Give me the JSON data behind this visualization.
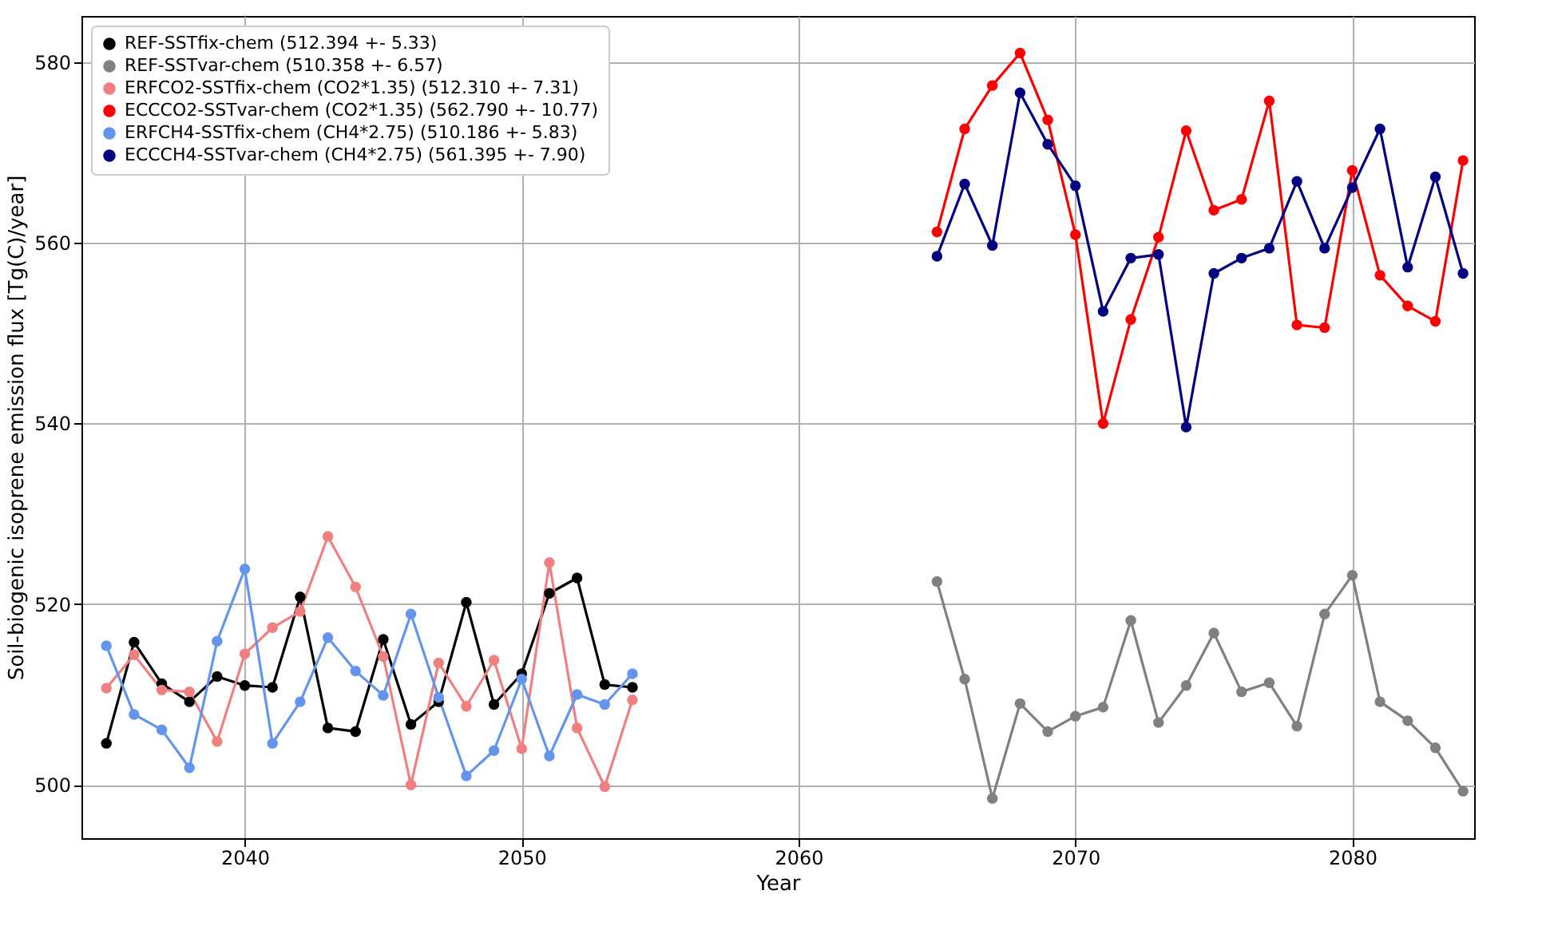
{
  "chart_data": {
    "type": "line",
    "xlabel": "Year",
    "ylabel": "Soil-biogenic isoprene emission flux [Tg(C)/year]",
    "xlim": [
      2034.1,
      2084.4
    ],
    "xticks": [
      2040,
      2050,
      2060,
      2070,
      2080
    ],
    "ylim": [
      494.1,
      585.1
    ],
    "yticks": [
      500,
      520,
      540,
      560,
      580
    ],
    "grid": true,
    "legend": "top left",
    "marker": "circle",
    "line_style": "solid",
    "series": [
      {
        "name": "REF-SSTfix-chem (512.394 +- 5.33)",
        "color": "#000000",
        "x": [
          2035,
          2036,
          2037,
          2038,
          2039,
          2040,
          2041,
          2042,
          2043,
          2044,
          2045,
          2046,
          2047,
          2048,
          2049,
          2050,
          2051,
          2052,
          2053,
          2054
        ],
        "values": [
          504.6,
          515.8,
          511.2,
          509.2,
          512.0,
          511.0,
          510.8,
          520.8,
          506.3,
          505.9,
          516.1,
          506.7,
          509.2,
          520.2,
          508.9,
          512.3,
          521.2,
          522.9,
          511.1,
          510.8
        ]
      },
      {
        "name": "REF-SSTvar-chem (510.358 +- 6.57)",
        "color": "#808080",
        "x": [
          2065,
          2066,
          2067,
          2068,
          2069,
          2070,
          2071,
          2072,
          2073,
          2074,
          2075,
          2076,
          2077,
          2078,
          2079,
          2080,
          2081,
          2082,
          2083,
          2084
        ],
        "values": [
          522.5,
          511.7,
          498.5,
          509.0,
          505.9,
          507.6,
          508.6,
          518.2,
          506.9,
          511.0,
          516.8,
          510.3,
          511.3,
          506.5,
          518.9,
          523.2,
          509.2,
          507.1,
          504.1,
          499.3
        ]
      },
      {
        "name": "ERFCO2-SSTfix-chem (CO2*1.35) (512.310 +- 7.31)",
        "color": "#f08080",
        "x": [
          2035,
          2036,
          2037,
          2038,
          2039,
          2040,
          2041,
          2042,
          2043,
          2044,
          2045,
          2046,
          2047,
          2048,
          2049,
          2050,
          2051,
          2052,
          2053,
          2054
        ],
        "values": [
          510.7,
          514.4,
          510.5,
          510.3,
          504.8,
          514.5,
          517.4,
          519.2,
          527.5,
          521.9,
          514.2,
          500.0,
          513.5,
          508.7,
          513.8,
          504.0,
          524.6,
          506.3,
          499.8,
          509.4
        ]
      },
      {
        "name": "ECCCO2-SSTvar-chem (CO2*1.35) (562.790 +- 10.77)",
        "color": "#ff0000",
        "x": [
          2065,
          2066,
          2067,
          2068,
          2069,
          2070,
          2071,
          2072,
          2073,
          2074,
          2075,
          2076,
          2077,
          2078,
          2079,
          2080,
          2081,
          2082,
          2083,
          2084
        ],
        "values": [
          561.2,
          572.6,
          577.4,
          581.0,
          573.6,
          560.9,
          540.0,
          551.5,
          560.6,
          572.4,
          563.6,
          564.8,
          575.7,
          550.9,
          550.6,
          568.0,
          556.4,
          553.0,
          551.3,
          569.1
        ]
      },
      {
        "name": "ERFCH4-SSTfix-chem (CH4*2.75) (510.186 +- 5.83)",
        "color": "#6495ed",
        "x": [
          2035,
          2036,
          2037,
          2038,
          2039,
          2040,
          2041,
          2042,
          2043,
          2044,
          2045,
          2046,
          2047,
          2048,
          2049,
          2050,
          2051,
          2052,
          2053,
          2054
        ],
        "values": [
          515.4,
          507.8,
          506.1,
          501.9,
          515.9,
          523.9,
          504.6,
          509.2,
          516.3,
          512.6,
          509.9,
          518.9,
          509.7,
          501.0,
          503.8,
          511.7,
          503.2,
          510.0,
          508.9,
          512.3
        ]
      },
      {
        "name": "ECCCH4-SSTvar-chem (CH4*2.75) (561.395 +- 7.90)",
        "color": "#000080",
        "x": [
          2065,
          2066,
          2067,
          2068,
          2069,
          2070,
          2071,
          2072,
          2073,
          2074,
          2075,
          2076,
          2077,
          2078,
          2079,
          2080,
          2081,
          2082,
          2083,
          2084
        ],
        "values": [
          558.5,
          566.5,
          559.7,
          576.6,
          570.9,
          566.3,
          552.4,
          558.3,
          558.7,
          539.6,
          556.6,
          558.3,
          559.4,
          566.8,
          559.4,
          566.1,
          572.6,
          557.3,
          567.3,
          556.6
        ]
      }
    ]
  }
}
